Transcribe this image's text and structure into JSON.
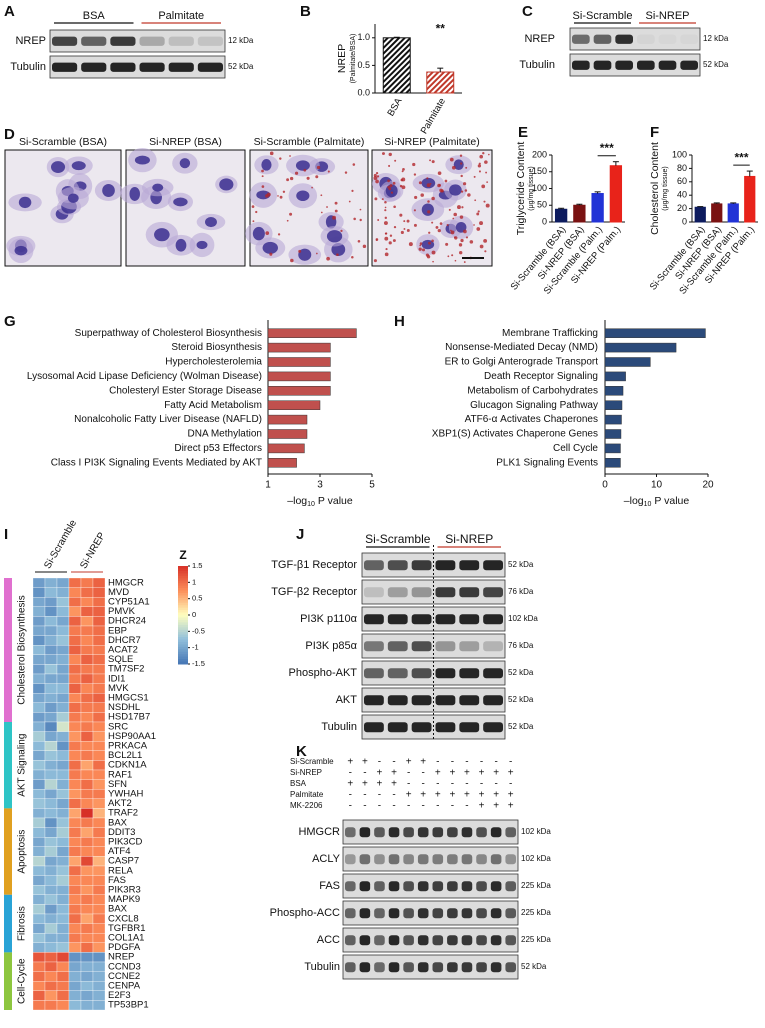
{
  "panel_labels": [
    "A",
    "B",
    "C",
    "D",
    "E",
    "F",
    "G",
    "H",
    "I",
    "J",
    "K"
  ],
  "blot_a": {
    "groups": [
      {
        "name": "BSA",
        "color": "#111111"
      },
      {
        "name": "Palmitate",
        "color": "#c0392b"
      }
    ],
    "rows": [
      {
        "name": "NREP",
        "size": "12 kDa"
      },
      {
        "name": "Tubulin",
        "size": "52 kDa"
      }
    ]
  },
  "blot_c": {
    "groups": [
      {
        "name": "Si-Scramble",
        "color": "#111111"
      },
      {
        "name": "Si-NREP",
        "color": "#c0392b"
      }
    ],
    "rows": [
      {
        "name": "NREP",
        "size": "12 kDa"
      },
      {
        "name": "Tubulin",
        "size": "52 kDa"
      }
    ]
  },
  "micrographs": [
    {
      "title": "Si-Scramble (BSA)",
      "color": "#4a72b0"
    },
    {
      "title": "Si-NREP (BSA)",
      "color": "#c0392b"
    },
    {
      "title": "Si-Scramble (Palmitate)",
      "color": "#4a72b0"
    },
    {
      "title": "Si-NREP (Palmitate)",
      "color": "#c0392b"
    }
  ],
  "chart_data": [
    {
      "type": "bar",
      "ylabel": "NREP",
      "ylabel_sub": "(Palmitate/BSA)",
      "categories": [
        "BSA",
        "Palmitate"
      ],
      "values": [
        1.0,
        0.38
      ],
      "errors": [
        0.01,
        0.07
      ],
      "colors": [
        "#111111",
        "#c0392b"
      ],
      "hatch": true,
      "ylim": [
        0,
        1.25
      ],
      "yticks": [
        {
          "value": 0,
          "label": "0.0"
        },
        {
          "value": 0.5,
          "label": "0.5"
        },
        {
          "value": 1,
          "label": "1.0"
        }
      ],
      "annotation": "**"
    },
    {
      "type": "bar",
      "ylabel": "Triglyceride Content",
      "ylabel_sub": "(μg/mg tissue)",
      "categories": [
        "Si-Scramble (BSA)",
        "Si-NREP (BSA)",
        "Si-Scramble (Palm.)",
        "Si-NREP (Palm.)"
      ],
      "values": [
        38,
        50,
        85,
        168
      ],
      "errors": [
        3,
        3,
        5,
        12
      ],
      "colors": [
        "#0d1b5e",
        "#7a1212",
        "#2233d6",
        "#e8231a"
      ],
      "ylim": [
        0,
        200
      ],
      "yticks": [
        0,
        50,
        100,
        150,
        200
      ],
      "annotation": "***"
    },
    {
      "type": "bar",
      "ylabel": "Cholesterol Content",
      "ylabel_sub": "(μg/mg tissue)",
      "categories": [
        "Si-Scramble (BSA)",
        "Si-NREP (BSA)",
        "Si-Scramble (Palm.)",
        "Si-NREP (Palm.)"
      ],
      "values": [
        22,
        27,
        27,
        68
      ],
      "errors": [
        1,
        1.5,
        1.5,
        8
      ],
      "colors": [
        "#0d1b5e",
        "#7a1212",
        "#2233d6",
        "#e8231a"
      ],
      "ylim": [
        0,
        100
      ],
      "yticks": [
        0,
        20,
        40,
        60,
        80,
        100
      ],
      "annotation": "***"
    },
    {
      "type": "bar",
      "horizontal": true,
      "color": "#c0504d",
      "categories": [
        "Superpathway of Cholesterol Biosynthesis",
        "Steroid Biosynthesis",
        "Hypercholesterolemia",
        "Lysosomal Acid Lipase Deficiency (Wolman Disease)",
        "Cholesteryl Ester Storage Disease",
        "Fatty Acid Metabolism",
        "Nonalcoholic Fatty Liver Disease (NAFLD)",
        "DNA Methylation",
        "Direct p53 Effectors",
        "Class I PI3K Signaling Events Mediated by AKT"
      ],
      "values": [
        4.4,
        3.4,
        3.4,
        3.4,
        3.4,
        3.0,
        2.5,
        2.5,
        2.4,
        2.1
      ],
      "xlim": [
        1,
        5
      ],
      "xticks": [
        1,
        3,
        5
      ],
      "xlabel": [
        "–log",
        "10",
        " P value"
      ]
    },
    {
      "type": "bar",
      "horizontal": true,
      "color": "#2b4a7a",
      "categories": [
        "Membrane Trafficking",
        "Nonsense-Mediated Decay (NMD)",
        "ER to Golgi Anterograde Transport",
        "Death Receptor Signaling",
        "Metabolism of Carbohydrates",
        "Glucagon Signaling Pathway",
        "ATF6-α Activates Chaperones",
        "XBP1(S) Activates Chaperone Genes",
        "Cell Cycle",
        "PLK1 Signaling Events"
      ],
      "values": [
        19.5,
        13.8,
        8.8,
        4.0,
        3.5,
        3.3,
        3.2,
        3.1,
        3.0,
        3.0
      ],
      "xlim": [
        0,
        20
      ],
      "xticks": [
        0,
        10,
        20
      ],
      "xlabel": [
        "–log",
        "10",
        " P value"
      ]
    },
    {
      "type": "heatmap",
      "columns": [
        {
          "name": "Si-Scramble",
          "color": "#111111"
        },
        {
          "name": "Si-NREP",
          "color": "#c0392b"
        }
      ],
      "colorbar": {
        "title": "Z",
        "lim": [
          -1.5,
          1.5
        ],
        "ticks": [
          1.5,
          1,
          0.5,
          0,
          -0.5,
          -1,
          -1.5
        ]
      },
      "groups": [
        {
          "name": "Cholesterol Biosynthesis",
          "color": "#e070cf",
          "rows": [
            {
              "gene": "HMGCR",
              "values": [
                -1.1,
                -0.9,
                -1.0,
                1.0,
                0.9,
                1.1
              ]
            },
            {
              "gene": "MVD",
              "values": [
                -1.2,
                -0.8,
                -0.9,
                0.8,
                1.0,
                1.1
              ]
            },
            {
              "gene": "CYP51A1",
              "values": [
                -1.0,
                -1.1,
                -0.7,
                1.0,
                0.8,
                1.0
              ]
            },
            {
              "gene": "PMVK",
              "values": [
                -0.9,
                -1.2,
                -0.8,
                0.7,
                1.1,
                1.1
              ]
            },
            {
              "gene": "DHCR24",
              "values": [
                -1.1,
                -0.8,
                -1.0,
                1.1,
                0.7,
                1.1
              ]
            },
            {
              "gene": "EBP",
              "values": [
                -1.0,
                -1.0,
                -0.8,
                0.9,
                0.9,
                1.0
              ]
            },
            {
              "gene": "DHCR7",
              "values": [
                -1.2,
                -0.9,
                -0.7,
                1.0,
                0.8,
                1.0
              ]
            },
            {
              "gene": "ACAT2",
              "values": [
                -0.8,
                -1.1,
                -1.0,
                1.1,
                0.9,
                0.9
              ]
            },
            {
              "gene": "SQLE",
              "values": [
                -1.0,
                -1.0,
                -0.9,
                0.8,
                1.1,
                1.0
              ]
            },
            {
              "gene": "TM7SF2",
              "values": [
                -1.1,
                -0.7,
                -1.0,
                1.0,
                0.9,
                0.9
              ]
            },
            {
              "gene": "IDI1",
              "values": [
                -0.9,
                -1.0,
                -1.0,
                0.9,
                1.1,
                0.9
              ]
            },
            {
              "gene": "MVK",
              "values": [
                -1.2,
                -0.8,
                -0.8,
                1.1,
                0.8,
                0.9
              ]
            },
            {
              "gene": "HMGCS1",
              "values": [
                -1.0,
                -0.9,
                -1.0,
                0.8,
                1.0,
                1.1
              ]
            },
            {
              "gene": "NSDHL",
              "values": [
                -0.8,
                -1.1,
                -0.9,
                1.0,
                0.9,
                0.9
              ]
            },
            {
              "gene": "HSD17B7",
              "values": [
                -1.1,
                -1.0,
                -0.6,
                0.9,
                0.8,
                1.0
              ]
            }
          ]
        },
        {
          "name": "AKT Signaling",
          "color": "#2ec4c6",
          "rows": [
            {
              "gene": "SRC",
              "values": [
                -0.9,
                -1.3,
                -0.3,
                0.8,
                0.9,
                0.8
              ]
            },
            {
              "gene": "HSP90AA1",
              "values": [
                -0.6,
                -1.0,
                -0.9,
                0.7,
                1.1,
                0.7
              ]
            },
            {
              "gene": "PRKACA",
              "values": [
                -0.8,
                -0.5,
                -1.2,
                0.9,
                0.8,
                0.8
              ]
            },
            {
              "gene": "BCL2L1",
              "values": [
                -1.0,
                -0.7,
                -0.8,
                0.8,
                0.9,
                0.8
              ]
            },
            {
              "gene": "CDKN1A",
              "values": [
                -0.7,
                -0.9,
                -1.0,
                1.0,
                0.6,
                1.0
              ]
            },
            {
              "gene": "RAF1",
              "values": [
                -0.9,
                -0.8,
                -0.8,
                0.9,
                0.8,
                0.8
              ]
            },
            {
              "gene": "SFN",
              "values": [
                -1.1,
                -0.5,
                -0.9,
                0.8,
                1.0,
                0.7
              ]
            },
            {
              "gene": "YWHAH",
              "values": [
                -0.8,
                -1.0,
                -0.7,
                0.7,
                0.9,
                0.9
              ]
            },
            {
              "gene": "AKT2",
              "values": [
                -0.7,
                -0.8,
                -1.0,
                1.0,
                0.8,
                0.7
              ]
            }
          ]
        },
        {
          "name": "Apoptosis",
          "color": "#e0a020",
          "rows": [
            {
              "gene": "TRAF2",
              "values": [
                -0.9,
                -0.8,
                -0.9,
                0.6,
                1.5,
                0.5
              ]
            },
            {
              "gene": "BAX",
              "values": [
                -0.6,
                -1.2,
                -0.7,
                0.8,
                0.9,
                0.8
              ]
            },
            {
              "gene": "DDIT3",
              "values": [
                -0.8,
                -1.0,
                -0.6,
                0.9,
                0.6,
                0.9
              ]
            },
            {
              "gene": "PIK3CD",
              "values": [
                -1.0,
                -0.7,
                -0.8,
                0.8,
                0.9,
                0.8
              ]
            },
            {
              "gene": "ATF4",
              "values": [
                -0.9,
                -0.6,
                -1.0,
                0.9,
                0.8,
                0.8
              ]
            },
            {
              "gene": "CASP7",
              "values": [
                -0.5,
                -1.0,
                -0.9,
                0.6,
                1.3,
                0.5
              ]
            },
            {
              "gene": "RELA",
              "values": [
                -0.8,
                -0.9,
                -0.7,
                1.0,
                0.7,
                0.7
              ]
            },
            {
              "gene": "FAS",
              "values": [
                -1.0,
                -0.8,
                -0.6,
                0.8,
                0.8,
                0.8
              ]
            },
            {
              "gene": "PIK3R3",
              "values": [
                -0.7,
                -0.9,
                -0.9,
                0.9,
                0.7,
                0.9
              ]
            }
          ]
        },
        {
          "name": "Fibrosis",
          "color": "#29a3d6",
          "rows": [
            {
              "gene": "MAPK9",
              "values": [
                -0.9,
                -0.7,
                -0.9,
                0.8,
                0.9,
                0.8
              ]
            },
            {
              "gene": "BAX",
              "values": [
                -0.6,
                -1.1,
                -0.8,
                0.9,
                0.8,
                0.8
              ]
            },
            {
              "gene": "CXCL8",
              "values": [
                -0.8,
                -0.9,
                -0.8,
                1.0,
                0.6,
                0.9
              ]
            },
            {
              "gene": "TGFBR1",
              "values": [
                -1.0,
                -0.6,
                -0.9,
                0.8,
                0.9,
                0.8
              ]
            },
            {
              "gene": "COL1A1",
              "values": [
                -0.7,
                -0.9,
                -0.9,
                0.9,
                0.8,
                0.8
              ]
            },
            {
              "gene": "PDGFA",
              "values": [
                -0.9,
                -0.8,
                -0.7,
                0.7,
                1.0,
                0.7
              ]
            }
          ]
        },
        {
          "name": "Cell-Cycle",
          "color": "#8dc63f",
          "rows": [
            {
              "gene": "NREP",
              "values": [
                1.2,
                1.1,
                1.3,
                -1.2,
                -1.2,
                -1.2
              ]
            },
            {
              "gene": "CCND3",
              "values": [
                0.9,
                1.1,
                0.8,
                -1.0,
                -0.9,
                -0.9
              ]
            },
            {
              "gene": "CCNE2",
              "values": [
                1.0,
                0.8,
                1.0,
                -0.9,
                -1.0,
                -0.9
              ]
            },
            {
              "gene": "CENPA",
              "values": [
                0.8,
                1.0,
                0.9,
                -1.0,
                -0.8,
                -0.9
              ]
            },
            {
              "gene": "E2F3",
              "values": [
                1.1,
                0.7,
                1.0,
                -0.9,
                -1.0,
                -0.9
              ]
            },
            {
              "gene": "TP53BP1",
              "values": [
                0.9,
                0.9,
                0.8,
                -0.8,
                -0.9,
                -0.9
              ]
            }
          ]
        }
      ]
    }
  ],
  "blot_j": {
    "groups": [
      {
        "name": "Si-Scramble",
        "color": "#111111"
      },
      {
        "name": "Si-NREP",
        "color": "#c0392b"
      }
    ],
    "rows": [
      {
        "name": "TGF-β1 Receptor",
        "size": "52 kDa"
      },
      {
        "name": "TGF-β2 Receptor",
        "size": "76 kDa"
      },
      {
        "name": "PI3K p110α",
        "size": "102 kDa"
      },
      {
        "name": "PI3K p85α",
        "size": "76 kDa"
      },
      {
        "name": "Phospho-AKT",
        "size": "52 kDa"
      },
      {
        "name": "AKT",
        "size": "52 kDa"
      },
      {
        "name": "Tubulin",
        "size": "52 kDa"
      }
    ]
  },
  "blot_k": {
    "conditions": [
      {
        "name": "Si-Scramble",
        "color": "#111111",
        "signs": [
          "+",
          "+",
          "-",
          "-",
          "+",
          "+",
          "-",
          "-",
          "-",
          "-",
          "-",
          "-"
        ]
      },
      {
        "name": "Si-NREP",
        "color": "#c0392b",
        "signs": [
          "-",
          "-",
          "+",
          "+",
          "-",
          "-",
          "+",
          "+",
          "+",
          "+",
          "+",
          "+"
        ]
      },
      {
        "name": "BSA",
        "color": "#111111",
        "signs": [
          "+",
          "+",
          "+",
          "+",
          "-",
          "-",
          "-",
          "-",
          "-",
          "-",
          "-",
          "-"
        ]
      },
      {
        "name": "Palmitate",
        "color": "#111111",
        "signs": [
          "-",
          "-",
          "-",
          "-",
          "+",
          "+",
          "+",
          "+",
          "+",
          "+",
          "+",
          "+"
        ]
      },
      {
        "name": "MK-2206",
        "color": "#111111",
        "signs": [
          "-",
          "-",
          "-",
          "-",
          "-",
          "-",
          "-",
          "-",
          "-",
          "+",
          "+",
          "+"
        ]
      }
    ],
    "rows": [
      {
        "name": "HMGCR",
        "size": "102 kDa"
      },
      {
        "name": "ACLY",
        "size": "102 kDa"
      },
      {
        "name": "FAS",
        "size": "225 kDa"
      },
      {
        "name": "Phospho-ACC",
        "size": "225 kDa"
      },
      {
        "name": "ACC",
        "size": "225 kDa"
      },
      {
        "name": "Tubulin",
        "size": "52 kDa"
      }
    ]
  }
}
